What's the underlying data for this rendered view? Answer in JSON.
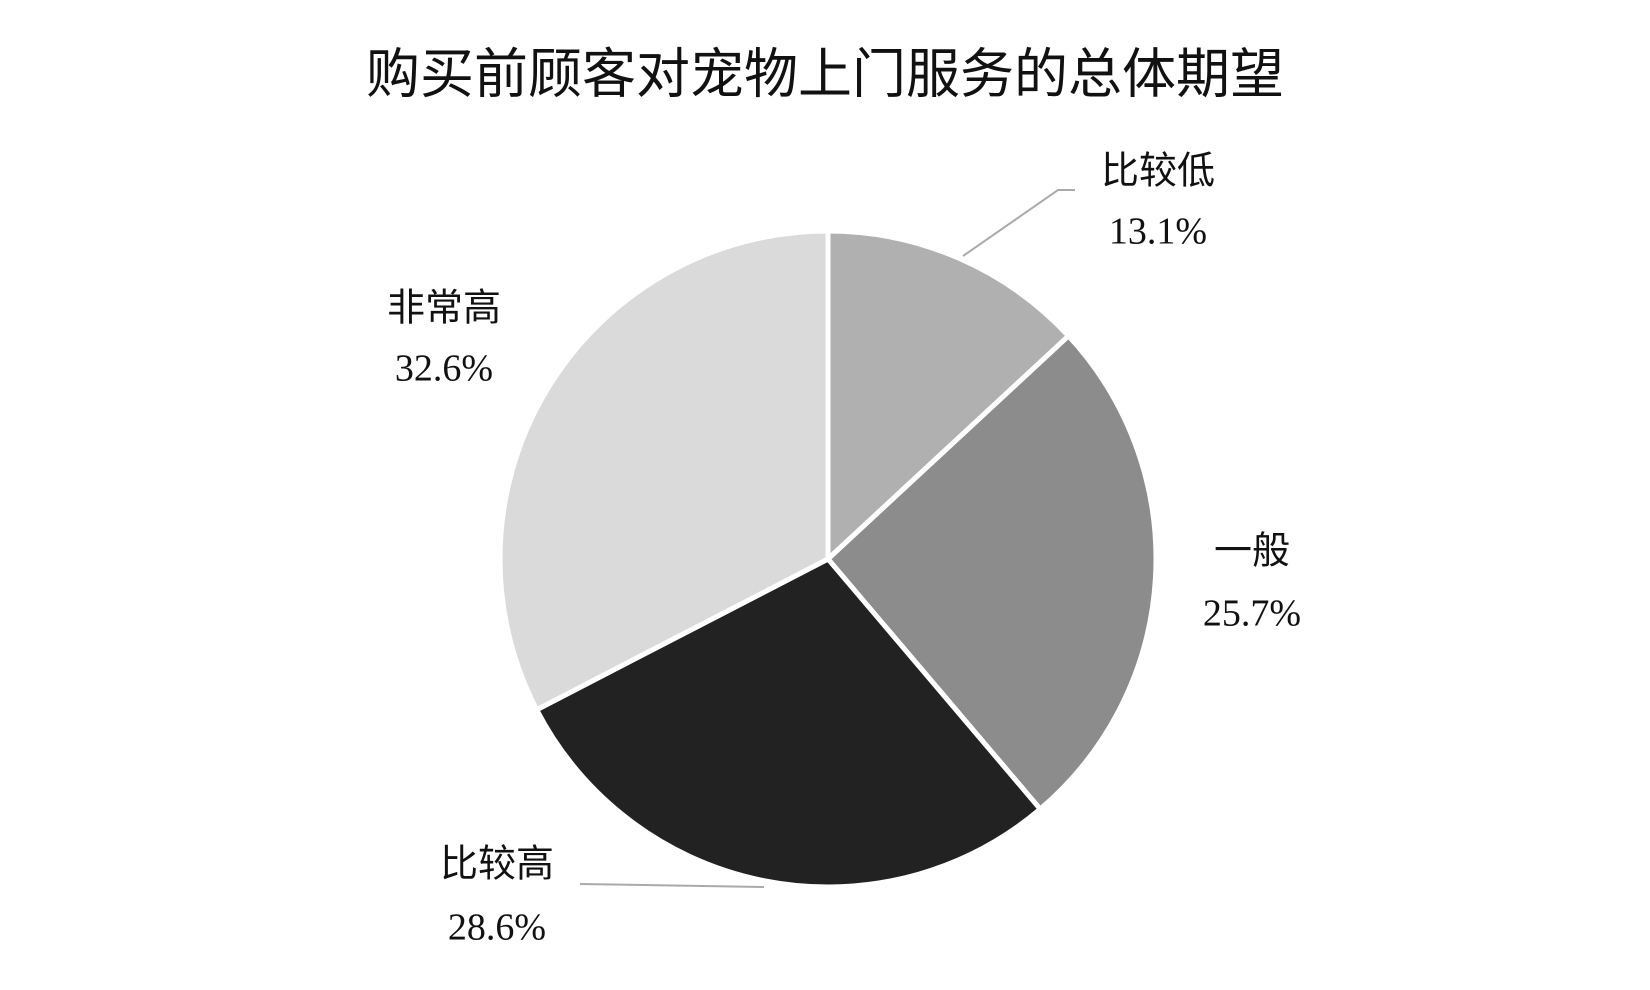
{
  "chart_data": {
    "type": "pie",
    "title": "购买前顾客对宠物上门服务的总体期望",
    "categories": [
      "比较低",
      "一般",
      "比较高",
      "非常高"
    ],
    "values": [
      13.1,
      25.7,
      28.6,
      32.6
    ],
    "value_labels": [
      "13.1%",
      "25.7%",
      "28.6%",
      "32.6%"
    ],
    "colors": [
      "#b0b0b0",
      "#8c8c8c",
      "#222222",
      "#dadada"
    ]
  }
}
